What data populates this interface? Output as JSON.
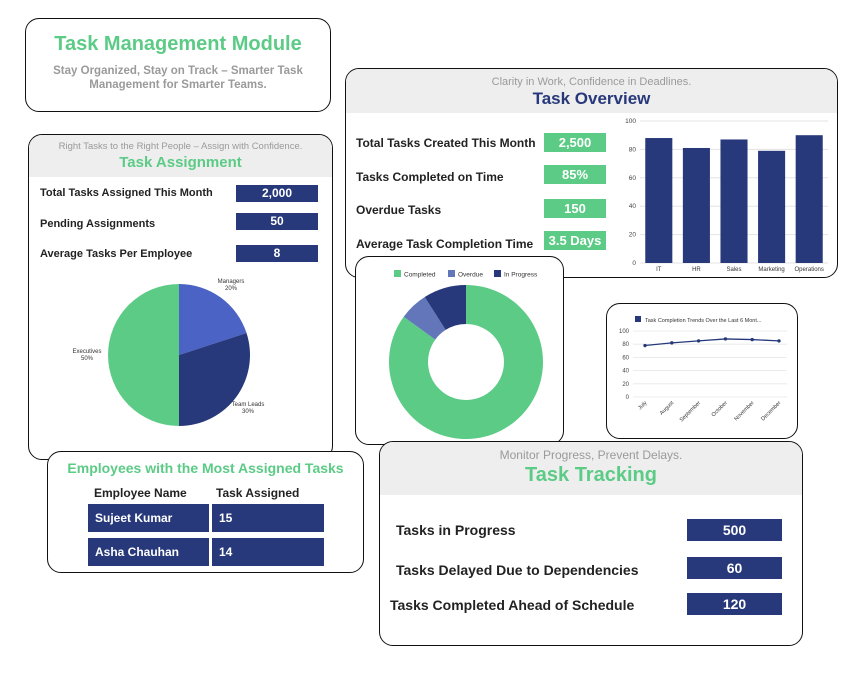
{
  "module": {
    "title": "Task Management Module",
    "tagline": "Stay Organized, Stay on Track – Smarter Task Management for Smarter Teams."
  },
  "overview": {
    "subtitle": "Clarity in Work, Confidence in Deadlines.",
    "title": "Task Overview",
    "stats": [
      {
        "label": "Total Tasks Created This Month",
        "value": "2,500"
      },
      {
        "label": "Tasks Completed on Time",
        "value": "85%"
      },
      {
        "label": "Overdue Tasks",
        "value": "150"
      },
      {
        "label": "Average Task Completion Time",
        "value": "3.5 Days"
      }
    ]
  },
  "assignment": {
    "subtitle": "Right Tasks to the Right People – Assign with Confidence.",
    "title": "Task Assignment",
    "stats": [
      {
        "label": "Total Tasks Assigned This Month",
        "value": "2,000"
      },
      {
        "label": "Pending Assignments",
        "value": "50"
      },
      {
        "label": "Average Tasks Per Employee",
        "value": "8"
      }
    ]
  },
  "employees": {
    "title": "Employees with the Most Assigned Tasks",
    "headers": [
      "Employee Name",
      "Task Assigned"
    ],
    "rows": [
      [
        "Sujeet Kumar",
        "15"
      ],
      [
        "Asha Chauhan",
        "14"
      ]
    ]
  },
  "tracking": {
    "subtitle": "Monitor Progress, Prevent Delays.",
    "title": "Task Tracking",
    "stats": [
      {
        "label": "Tasks in Progress",
        "value": "500"
      },
      {
        "label": "Tasks Delayed Due to Dependencies",
        "value": "60"
      },
      {
        "label": "Tasks Completed Ahead of Schedule",
        "value": "120"
      }
    ]
  },
  "colors": {
    "green": "#5ccb86",
    "navy": "#27397a",
    "blue": "#4a63c4",
    "slate": "#6276b9"
  },
  "chart_data": [
    {
      "type": "bar",
      "categories": [
        "IT",
        "HR",
        "Sales",
        "Marketing",
        "Operations"
      ],
      "values": [
        88,
        81,
        87,
        79,
        90
      ],
      "ylim": [
        0,
        100
      ],
      "yticks": [
        "0",
        "20",
        "40",
        "60",
        "80",
        "100"
      ],
      "grid": true
    },
    {
      "type": "pie",
      "labels": [
        "Managers",
        "Team Leads",
        "Executives"
      ],
      "pct_labels": [
        "20%",
        "30%",
        "50%"
      ],
      "values": [
        20,
        30,
        50
      ],
      "colors": [
        "#4a63c4",
        "#27397a",
        "#5ccb86"
      ]
    },
    {
      "type": "pie",
      "donut": true,
      "legend": [
        "Completed",
        "Overdue",
        "In Progress"
      ],
      "legend_position": "top",
      "values": [
        85,
        6,
        9
      ],
      "colors": [
        "#5ccb86",
        "#6276b9",
        "#27397a"
      ]
    },
    {
      "type": "line",
      "legend": "Task Completion Trends Over the Last 6 Mont...",
      "legend_position": "top",
      "categories": [
        "July",
        "August",
        "September",
        "October",
        "November",
        "December"
      ],
      "values": [
        78,
        82,
        85,
        88,
        87,
        85
      ],
      "ylim": [
        0,
        100
      ],
      "yticks": [
        "0",
        "20",
        "40",
        "60",
        "80",
        "100"
      ],
      "grid": true
    }
  ]
}
